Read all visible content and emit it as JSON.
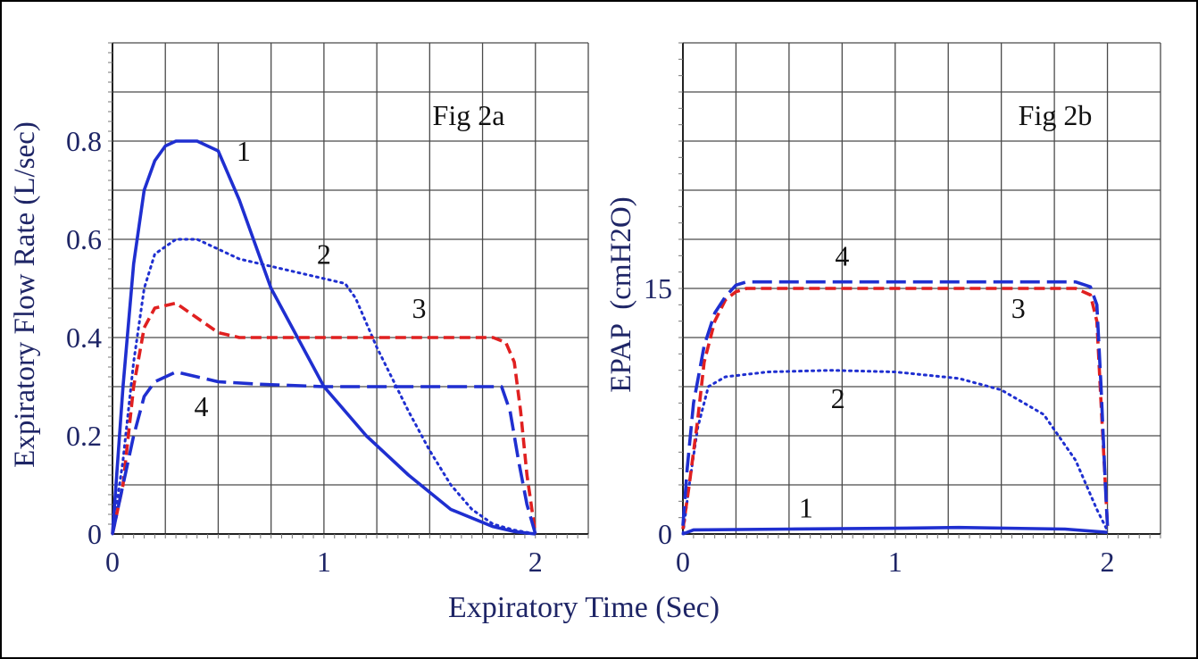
{
  "xlabel": "Expiratory Time (Sec)",
  "colors": {
    "blue": "#1f2fd0",
    "red": "#e02020",
    "text": "#1e2566",
    "grid": "#4a4a4a"
  },
  "chart_data": [
    {
      "type": "line",
      "title": "Fig 2a",
      "xlabel": "Expiratory Time (Sec)",
      "ylabel": "Expiratory Flow Rate (L/sec)",
      "xlim": [
        0,
        2.25
      ],
      "ylim": [
        0,
        1.0
      ],
      "xticks": [
        "0",
        "1",
        "2"
      ],
      "yticks": [
        "0",
        "0.2",
        "0.4",
        "0.6",
        "0.8"
      ],
      "grid": true,
      "series": [
        {
          "name": "1",
          "style": "solid",
          "color": "#1f2fd0",
          "x": [
            0,
            0.05,
            0.1,
            0.15,
            0.2,
            0.25,
            0.3,
            0.4,
            0.5,
            0.6,
            0.7,
            0.75,
            0.85,
            1.0,
            1.2,
            1.4,
            1.6,
            1.8,
            1.9,
            2.0
          ],
          "y": [
            0,
            0.3,
            0.55,
            0.7,
            0.76,
            0.79,
            0.8,
            0.8,
            0.78,
            0.68,
            0.56,
            0.5,
            0.42,
            0.3,
            0.2,
            0.12,
            0.05,
            0.015,
            0.005,
            0
          ],
          "label_at": [
            0.62,
            0.76
          ]
        },
        {
          "name": "2",
          "style": "dotted",
          "color": "#1f2fd0",
          "x": [
            0,
            0.05,
            0.1,
            0.15,
            0.2,
            0.3,
            0.4,
            0.6,
            0.8,
            1.0,
            1.1,
            1.15,
            1.25,
            1.4,
            1.5,
            1.6,
            1.7,
            1.8,
            1.9,
            2.0
          ],
          "y": [
            0,
            0.15,
            0.35,
            0.5,
            0.57,
            0.6,
            0.6,
            0.56,
            0.54,
            0.52,
            0.51,
            0.48,
            0.38,
            0.25,
            0.17,
            0.1,
            0.05,
            0.02,
            0.008,
            0
          ],
          "label_at": [
            1.0,
            0.55
          ]
        },
        {
          "name": "3",
          "style": "dashed",
          "color": "#e02020",
          "x": [
            0,
            0.05,
            0.1,
            0.15,
            0.2,
            0.3,
            0.4,
            0.5,
            0.6,
            1.0,
            1.8,
            1.86,
            1.9,
            1.93,
            1.96,
            2.0
          ],
          "y": [
            0,
            0.1,
            0.3,
            0.42,
            0.46,
            0.47,
            0.44,
            0.41,
            0.4,
            0.4,
            0.4,
            0.39,
            0.35,
            0.25,
            0.12,
            0
          ],
          "label_at": [
            1.45,
            0.44
          ]
        },
        {
          "name": "4",
          "style": "longdash",
          "color": "#1f2fd0",
          "x": [
            0,
            0.05,
            0.1,
            0.15,
            0.2,
            0.3,
            0.4,
            0.5,
            0.7,
            1.0,
            1.84,
            1.88,
            1.92,
            1.96,
            2.0
          ],
          "y": [
            0,
            0.1,
            0.2,
            0.28,
            0.31,
            0.33,
            0.32,
            0.31,
            0.305,
            0.3,
            0.3,
            0.25,
            0.15,
            0.06,
            0
          ],
          "label_at": [
            0.42,
            0.24
          ]
        }
      ]
    },
    {
      "type": "line",
      "title": "Fig 2b",
      "xlabel": "Expiratory Time (Sec)",
      "ylabel": "EPAP  (cmH2O)",
      "xlim": [
        0,
        2.25
      ],
      "ylim": [
        0,
        30
      ],
      "xticks": [
        "0",
        "1",
        "2"
      ],
      "yticks": [
        "0",
        "15"
      ],
      "grid": true,
      "series": [
        {
          "name": "1",
          "style": "solid",
          "color": "#1f2fd0",
          "x": [
            0,
            0.05,
            0.5,
            1.0,
            1.3,
            1.8,
            2.0
          ],
          "y": [
            0,
            0.25,
            0.3,
            0.35,
            0.4,
            0.3,
            0.1
          ],
          "label_at": [
            0.58,
            1.0
          ]
        },
        {
          "name": "2",
          "style": "dotted",
          "color": "#1f2fd0",
          "x": [
            0,
            0.03,
            0.07,
            0.12,
            0.2,
            0.4,
            0.7,
            1.0,
            1.3,
            1.5,
            1.7,
            1.85,
            1.95,
            2.0
          ],
          "y": [
            0,
            3,
            6.5,
            9,
            9.6,
            9.9,
            10,
            9.9,
            9.5,
            8.8,
            7.3,
            4.5,
            1.5,
            0.2
          ],
          "label_at": [
            0.73,
            7.7
          ]
        },
        {
          "name": "3",
          "style": "dashed",
          "color": "#e02020",
          "x": [
            0,
            0.03,
            0.07,
            0.1,
            0.15,
            0.2,
            0.25,
            0.3,
            1.85,
            1.92,
            1.95,
            1.97,
            1.99,
            2.0
          ],
          "y": [
            0.3,
            3,
            7,
            10.5,
            13,
            14.3,
            14.8,
            15,
            15,
            14.6,
            13,
            8,
            3,
            0.5
          ],
          "label_at": [
            1.58,
            13.2
          ]
        },
        {
          "name": "4",
          "style": "longdash",
          "color": "#1f2fd0",
          "x": [
            0,
            0.02,
            0.05,
            0.1,
            0.15,
            0.2,
            0.25,
            0.3,
            1.85,
            1.92,
            1.95,
            1.97,
            1.99,
            2.0
          ],
          "y": [
            0.5,
            4,
            8,
            11.5,
            13.5,
            14.5,
            15.2,
            15.4,
            15.4,
            15.1,
            14,
            9,
            3,
            0.5
          ],
          "label_at": [
            0.75,
            16.4
          ]
        }
      ]
    }
  ]
}
